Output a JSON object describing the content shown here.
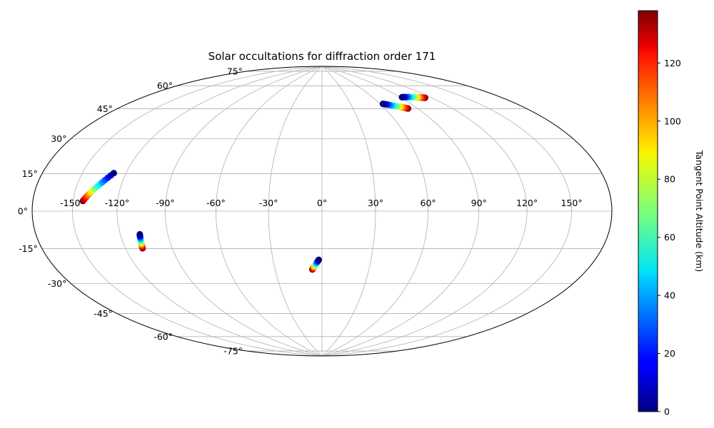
{
  "chart_data": {
    "type": "scatter",
    "projection": "hammer",
    "title": "Solar occultations for diffraction order 171",
    "lon_tick_labels": [
      "-150°",
      "-120°",
      "-90°",
      "-60°",
      "-30°",
      "0°",
      "30°",
      "60°",
      "90°",
      "120°",
      "150°"
    ],
    "lon_ticks": [
      -150,
      -120,
      -90,
      -60,
      -30,
      0,
      30,
      60,
      90,
      120,
      150
    ],
    "lat_tick_labels": [
      "75°",
      "60°",
      "45°",
      "30°",
      "15°",
      "0°",
      "-15°",
      "-30°",
      "-45°",
      "-60°",
      "-75°"
    ],
    "lat_ticks": [
      75,
      60,
      45,
      30,
      15,
      0,
      -15,
      -30,
      -45,
      -60,
      -75
    ],
    "grid": true,
    "colorbar": {
      "label": "Tangent Point Altitude (km)",
      "range": [
        0,
        138
      ],
      "colormap": "jet",
      "tick_labels": [
        "0",
        "20",
        "40",
        "60",
        "80",
        "100",
        "120"
      ],
      "ticks": [
        0,
        20,
        40,
        60,
        80,
        100,
        120
      ]
    },
    "series": [
      {
        "points": [
          {
            "lon": -128.2,
            "lat": 18.2,
            "alt": 0
          },
          {
            "lon": -129.5,
            "lat": 17.0,
            "alt": 10
          },
          {
            "lon": -130.8,
            "lat": 15.8,
            "alt": 20
          },
          {
            "lon": -132.1,
            "lat": 14.6,
            "alt": 30
          },
          {
            "lon": -133.3,
            "lat": 13.5,
            "alt": 40
          },
          {
            "lon": -134.5,
            "lat": 12.5,
            "alt": 50
          },
          {
            "lon": -135.7,
            "lat": 11.5,
            "alt": 60
          },
          {
            "lon": -136.8,
            "lat": 10.5,
            "alt": 70
          },
          {
            "lon": -137.9,
            "lat": 9.6,
            "alt": 80
          },
          {
            "lon": -138.9,
            "lat": 8.7,
            "alt": 90
          },
          {
            "lon": -139.9,
            "lat": 7.8,
            "alt": 100
          },
          {
            "lon": -140.8,
            "lat": 7.0,
            "alt": 110
          },
          {
            "lon": -141.6,
            "lat": 6.2,
            "alt": 120
          },
          {
            "lon": -142.5,
            "lat": 5.3,
            "alt": 130
          },
          {
            "lon": -143.2,
            "lat": 4.6,
            "alt": 138
          }
        ]
      },
      {
        "points": [
          {
            "lon": -107.5,
            "lat": -11.6,
            "alt": 0
          },
          {
            "lon": -107.6,
            "lat": -12.1,
            "alt": 10
          },
          {
            "lon": -107.7,
            "lat": -12.6,
            "alt": 20
          },
          {
            "lon": -107.8,
            "lat": -13.1,
            "alt": 30
          },
          {
            "lon": -107.9,
            "lat": -13.6,
            "alt": 40
          },
          {
            "lon": -108.0,
            "lat": -14.1,
            "alt": 50
          },
          {
            "lon": -108.1,
            "lat": -14.6,
            "alt": 60
          },
          {
            "lon": -108.2,
            "lat": -15.1,
            "alt": 70
          },
          {
            "lon": -108.3,
            "lat": -15.6,
            "alt": 80
          },
          {
            "lon": -108.4,
            "lat": -16.1,
            "alt": 90
          },
          {
            "lon": -108.5,
            "lat": -16.6,
            "alt": 100
          },
          {
            "lon": -108.6,
            "lat": -17.1,
            "alt": 110
          },
          {
            "lon": -108.7,
            "lat": -17.6,
            "alt": 120
          },
          {
            "lon": -108.8,
            "lat": -18.1,
            "alt": 130
          },
          {
            "lon": -108.9,
            "lat": -18.6,
            "alt": 138
          }
        ]
      },
      {
        "points": [
          {
            "lon": -2.0,
            "lat": -27.5,
            "alt": 0
          },
          {
            "lon": -2.3,
            "lat": -27.9,
            "alt": 10
          },
          {
            "lon": -2.6,
            "lat": -28.3,
            "alt": 20
          },
          {
            "lon": -2.9,
            "lat": -28.7,
            "alt": 30
          },
          {
            "lon": -3.2,
            "lat": -29.1,
            "alt": 40
          },
          {
            "lon": -3.5,
            "lat": -29.5,
            "alt": 50
          },
          {
            "lon": -3.8,
            "lat": -29.9,
            "alt": 60
          },
          {
            "lon": -4.1,
            "lat": -30.3,
            "alt": 70
          },
          {
            "lon": -4.4,
            "lat": -30.7,
            "alt": 80
          },
          {
            "lon": -4.7,
            "lat": -31.1,
            "alt": 90
          },
          {
            "lon": -5.0,
            "lat": -31.5,
            "alt": 100
          },
          {
            "lon": -5.3,
            "lat": -31.9,
            "alt": 110
          },
          {
            "lon": -5.6,
            "lat": -32.3,
            "alt": 120
          },
          {
            "lon": -5.9,
            "lat": -32.7,
            "alt": 130
          },
          {
            "lon": -6.2,
            "lat": -33.1,
            "alt": 138
          }
        ]
      },
      {
        "points": [
          {
            "lon": 63.0,
            "lat": 61.5,
            "alt": 0
          },
          {
            "lon": 64.7,
            "lat": 61.2,
            "alt": 10
          },
          {
            "lon": 66.3,
            "lat": 60.9,
            "alt": 20
          },
          {
            "lon": 67.9,
            "lat": 60.6,
            "alt": 30
          },
          {
            "lon": 69.4,
            "lat": 60.2,
            "alt": 40
          },
          {
            "lon": 70.9,
            "lat": 59.9,
            "alt": 50
          },
          {
            "lon": 72.3,
            "lat": 59.6,
            "alt": 60
          },
          {
            "lon": 73.6,
            "lat": 59.3,
            "alt": 70
          },
          {
            "lon": 74.9,
            "lat": 59.0,
            "alt": 80
          },
          {
            "lon": 76.1,
            "lat": 58.7,
            "alt": 90
          },
          {
            "lon": 77.3,
            "lat": 58.4,
            "alt": 100
          },
          {
            "lon": 78.4,
            "lat": 58.1,
            "alt": 110
          },
          {
            "lon": 79.5,
            "lat": 57.8,
            "alt": 120
          },
          {
            "lon": 80.5,
            "lat": 57.5,
            "alt": 130
          },
          {
            "lon": 81.4,
            "lat": 57.3,
            "alt": 138
          }
        ]
      },
      {
        "points": [
          {
            "lon": 92.0,
            "lat": 64.0,
            "alt": 0
          },
          {
            "lon": 93.8,
            "lat": 63.9,
            "alt": 10
          },
          {
            "lon": 95.6,
            "lat": 63.8,
            "alt": 20
          },
          {
            "lon": 97.4,
            "lat": 63.6,
            "alt": 30
          },
          {
            "lon": 99.1,
            "lat": 63.5,
            "alt": 40
          },
          {
            "lon": 100.8,
            "lat": 63.3,
            "alt": 50
          },
          {
            "lon": 102.4,
            "lat": 63.1,
            "alt": 60
          },
          {
            "lon": 104.0,
            "lat": 62.9,
            "alt": 70
          },
          {
            "lon": 105.5,
            "lat": 62.7,
            "alt": 80
          },
          {
            "lon": 107.0,
            "lat": 62.5,
            "alt": 90
          },
          {
            "lon": 108.4,
            "lat": 62.3,
            "alt": 100
          },
          {
            "lon": 109.8,
            "lat": 62.1,
            "alt": 110
          },
          {
            "lon": 111.1,
            "lat": 61.9,
            "alt": 120
          },
          {
            "lon": 112.4,
            "lat": 61.7,
            "alt": 130
          },
          {
            "lon": 113.6,
            "lat": 61.5,
            "alt": 138
          }
        ]
      }
    ]
  }
}
